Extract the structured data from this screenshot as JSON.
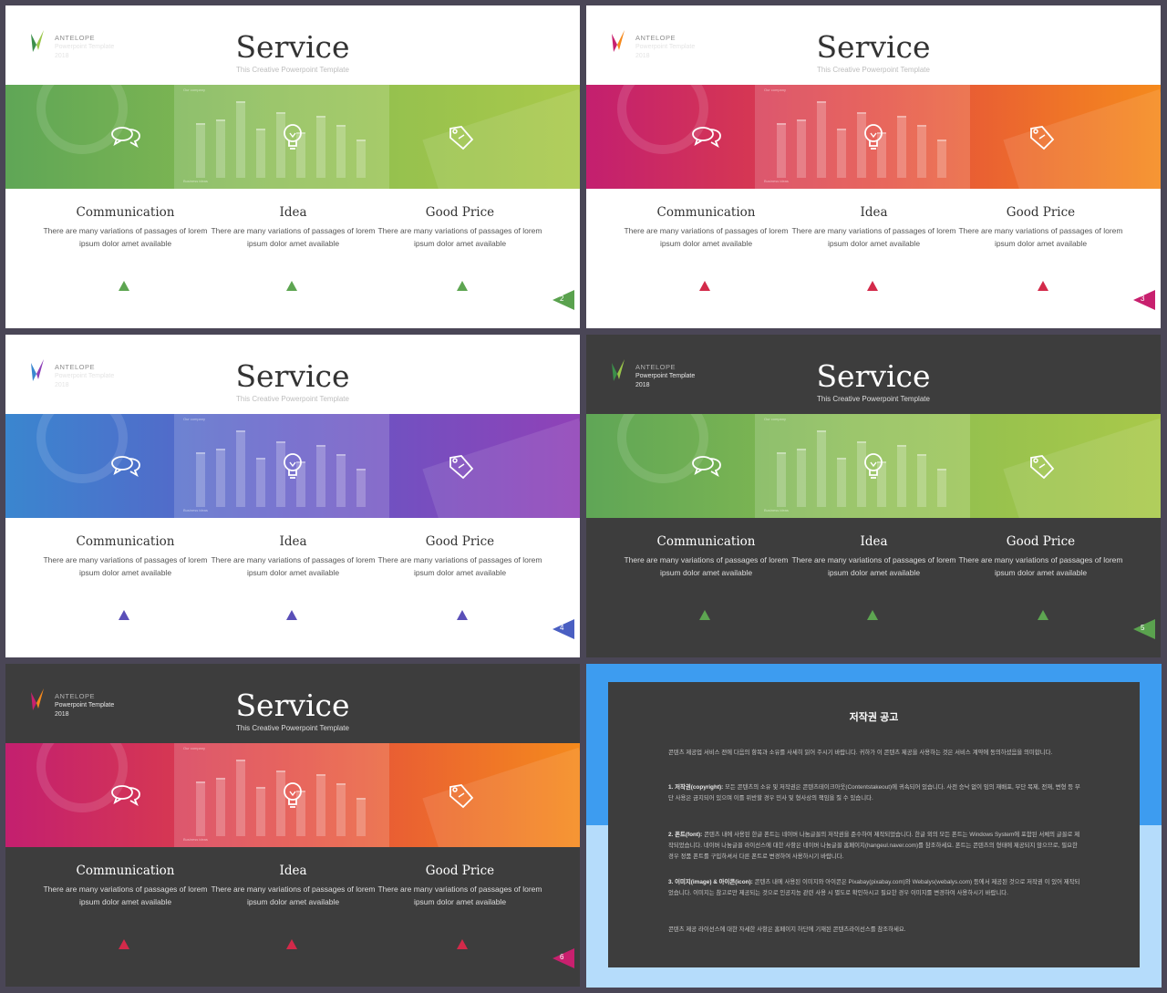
{
  "colors": {
    "slide2": [
      "#6aa84f",
      "#a7c84a"
    ],
    "slide3": [
      "#c8206e",
      "#f5891c"
    ],
    "slide4": [
      "#3a87d0",
      "#8e40b8"
    ],
    "slide5": [
      "#6aa84f",
      "#a7c84a"
    ],
    "slide6": [
      "#c8206e",
      "#f5891c"
    ],
    "notice_top": "#3d9cf0",
    "notice_bottom": "#b5dcfb"
  },
  "slides": [
    {
      "brand": {
        "name": "ANTELOPE",
        "line2": "Powerpoint Template",
        "year": "2018"
      },
      "title": "Service",
      "subtitle": "This Creative Powerpoint Template",
      "chart_label": "Our company",
      "chart_footer": "Business ideas",
      "columns": [
        {
          "heading": "Communication",
          "text": "There are many variations of passages of lorem ipsum dolor amet available",
          "icon": "speech-bubbles-icon"
        },
        {
          "heading": "Idea",
          "text": "There are many variations of passages of lorem ipsum dolor amet available",
          "icon": "lightbulb-icon"
        },
        {
          "heading": "Good Price",
          "text": "There are many variations of passages of lorem ipsum dolor amet available",
          "icon": "price-tag-icon"
        }
      ],
      "page": "2"
    },
    {
      "brand": {
        "name": "ANTELOPE",
        "line2": "Powerpoint Template",
        "year": "2018"
      },
      "title": "Service",
      "subtitle": "This Creative Powerpoint Template",
      "chart_label": "Our company",
      "chart_footer": "Business ideas",
      "columns": [
        {
          "heading": "Communication",
          "text": "There are many variations of passages of lorem ipsum dolor amet available",
          "icon": "speech-bubbles-icon"
        },
        {
          "heading": "Idea",
          "text": "There are many variations of passages of lorem ipsum dolor amet available",
          "icon": "lightbulb-icon"
        },
        {
          "heading": "Good Price",
          "text": "There are many variations of passages of lorem ipsum dolor amet available",
          "icon": "price-tag-icon"
        }
      ],
      "page": "3"
    },
    {
      "brand": {
        "name": "ANTELOPE",
        "line2": "Powerpoint Template",
        "year": "2018"
      },
      "title": "Service",
      "subtitle": "This Creative Powerpoint Template",
      "chart_label": "Our company",
      "chart_footer": "Business ideas",
      "columns": [
        {
          "heading": "Communication",
          "text": "There are many variations of passages of lorem ipsum dolor amet available",
          "icon": "speech-bubbles-icon"
        },
        {
          "heading": "Idea",
          "text": "There are many variations of passages of lorem ipsum dolor amet available",
          "icon": "lightbulb-icon"
        },
        {
          "heading": "Good Price",
          "text": "There are many variations of passages of lorem ipsum dolor amet available",
          "icon": "price-tag-icon"
        }
      ],
      "page": "4"
    },
    {
      "brand": {
        "name": "ANTELOPE",
        "line2": "Powerpoint Template",
        "year": "2018"
      },
      "title": "Service",
      "subtitle": "This Creative Powerpoint Template",
      "chart_label": "Our company",
      "chart_footer": "Business ideas",
      "columns": [
        {
          "heading": "Communication",
          "text": "There are many variations of passages of lorem ipsum dolor amet available",
          "icon": "speech-bubbles-icon"
        },
        {
          "heading": "Idea",
          "text": "There are many variations of passages of lorem ipsum dolor amet available",
          "icon": "lightbulb-icon"
        },
        {
          "heading": "Good Price",
          "text": "There are many variations of passages of lorem ipsum dolor amet available",
          "icon": "price-tag-icon"
        }
      ],
      "page": "5"
    },
    {
      "brand": {
        "name": "ANTELOPE",
        "line2": "Powerpoint Template",
        "year": "2018"
      },
      "title": "Service",
      "subtitle": "This Creative Powerpoint Template",
      "chart_label": "Our company",
      "chart_footer": "Business ideas",
      "columns": [
        {
          "heading": "Communication",
          "text": "There are many variations of passages of lorem ipsum dolor amet available",
          "icon": "speech-bubbles-icon"
        },
        {
          "heading": "Idea",
          "text": "There are many variations of passages of lorem ipsum dolor amet available",
          "icon": "lightbulb-icon"
        },
        {
          "heading": "Good Price",
          "text": "There are many variations of passages of lorem ipsum dolor amet available",
          "icon": "price-tag-icon"
        }
      ],
      "page": "6"
    }
  ],
  "notice": {
    "title": "저작권 공고",
    "intro": "콘텐츠 제공업 서비스 전에 다음의 항목과 소유를 사세히 읽어 주시기 바랍니다. 귀하가 이 콘텐츠 제공을 사용하는 것은 서비스 계약에 동의하셨음을 의미합니다.",
    "p1_head": "1. 저작권(copyright):",
    "p1": "모든 콘텐츠의 소유 및 저작권은 콘텐츠테이크아웃(Contentstakeout)에 귀속되어 있습니다. 사전 승낙 없이 임의 재배포, 무단 복제, 전재, 변형 등 무단 사용은 금지되어 있으며 이를 위반할 경우 민사 및 형사상의 책임을 질 수 있습니다.",
    "p2_head": "2. 폰트(font):",
    "p2": "콘텐츠 내에 사용된 한글 폰트는 네이버 나눔글꼴의 저작권을 준수하여 제작되었습니다. 한글 외의 모든 폰트는 Windows System에 포함된 서체의 글꼴로 제작되었습니다. 네이버 나눔글꼴 라이선스에 대한 사항은 네이버 나눔글꼴 홈페이지(hangeul.naver.com)를 참조하세요. 폰트는 콘텐츠의 형태에 제공되지 않으므로, 필요한 경우 정품 폰트를 구입하셔서 다른 폰트로 변경하여 사용하시기 바랍니다.",
    "p3_head": "3. 이미지(image) & 아이콘(icon):",
    "p3": "콘텐츠 내에 사용된 이미지와 아이콘은 Pixabay(pixabay.com)와 Webalys(webalys.com) 등에서 제공된 것으로 저작권 이 있어 제작되었습니다. 이미지는 참고로만 제공되는 것으로 인공지능 관련 사용 시 별도로 확인하시고 필요한 경우 이미지를 변경하여 사용하시기 바랍니다.",
    "outro": "콘텐츠 제공 라이선스에 대한 자세한 사항은 홈페이지 하단에 기재된 콘텐츠라이선스를 참조하세요."
  }
}
